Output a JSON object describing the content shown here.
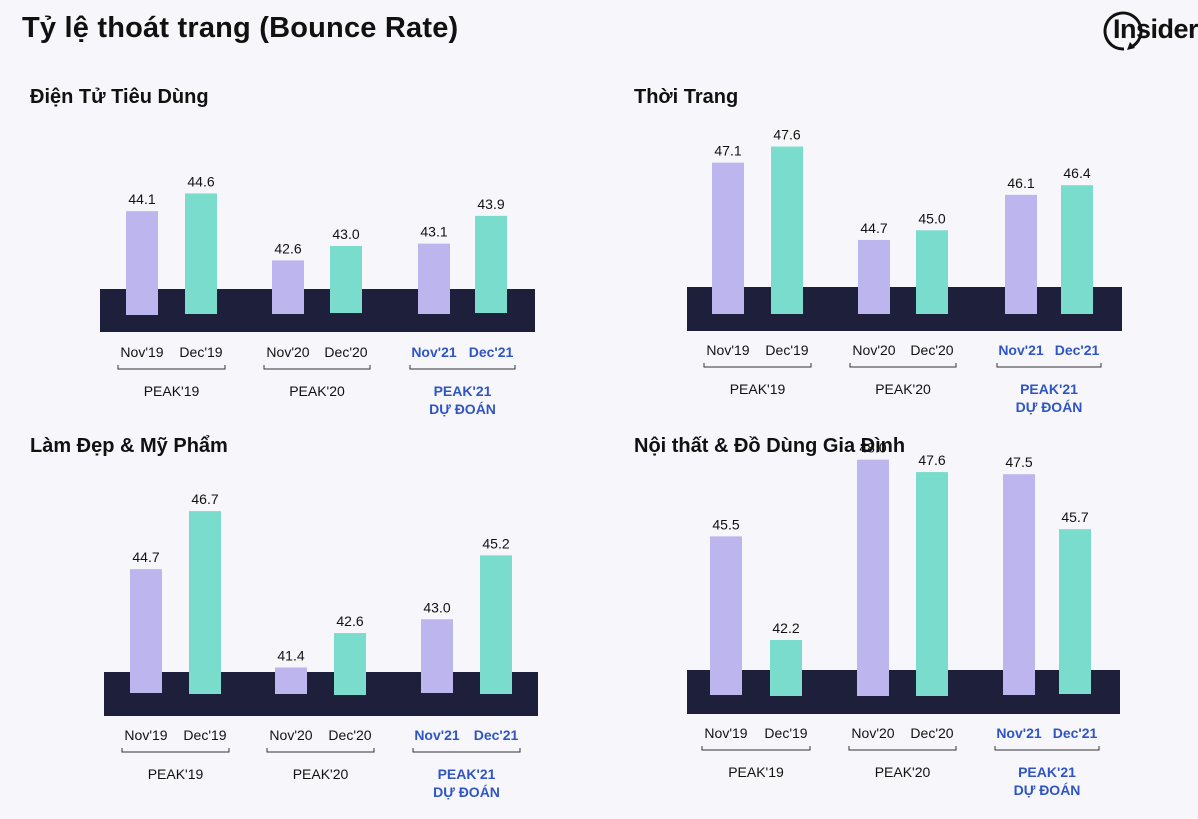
{
  "title": "Tỷ lệ thoát trang (Bounce Rate)",
  "logo": {
    "text": "Insider"
  },
  "colors": {
    "nov": "#bdb5ee",
    "dec": "#79dccd",
    "band": "#1e1f3b",
    "predicted_text": "#2f55c4",
    "text": "#111111"
  },
  "chart_data": [
    {
      "type": "bar",
      "title": "Điện Tử Tiêu Dùng",
      "categories": [
        "Nov'19",
        "Dec'19",
        "Nov'20",
        "Dec'20",
        "Nov'21",
        "Dec'21"
      ],
      "values": [
        44.1,
        44.6,
        42.6,
        43.0,
        43.1,
        43.9
      ],
      "data_labels": [
        "44.1",
        "44.6",
        "42.6",
        "43.0",
        "43.1",
        "43.9"
      ],
      "groups": [
        {
          "lines": [
            "PEAK'19"
          ],
          "predicted": false
        },
        {
          "lines": [
            "PEAK'20"
          ],
          "predicted": false
        },
        {
          "lines": [
            "PEAK'21",
            "DỰ ĐOÁN"
          ],
          "predicted": true
        }
      ]
    },
    {
      "type": "bar",
      "title": "Thời Trang",
      "categories": [
        "Nov'19",
        "Dec'19",
        "Nov'20",
        "Dec'20",
        "Nov'21",
        "Dec'21"
      ],
      "values": [
        47.1,
        47.6,
        44.7,
        45.0,
        46.1,
        46.4
      ],
      "data_labels": [
        "47.1",
        "47.6",
        "44.7",
        "45.0",
        "46.1",
        "46.4"
      ],
      "groups": [
        {
          "lines": [
            "PEAK'19"
          ],
          "predicted": false
        },
        {
          "lines": [
            "PEAK'20"
          ],
          "predicted": false
        },
        {
          "lines": [
            "PEAK'21",
            "DỰ ĐOÁN"
          ],
          "predicted": true
        }
      ]
    },
    {
      "type": "bar",
      "title": "Làm Đẹp & Mỹ Phẩm",
      "categories": [
        "Nov'19",
        "Dec'19",
        "Nov'20",
        "Dec'20",
        "Nov'21",
        "Dec'21"
      ],
      "values": [
        44.7,
        46.7,
        41.4,
        42.6,
        43.0,
        45.2
      ],
      "data_labels": [
        "44.7",
        "46.7",
        "41.4",
        "42.6",
        "43.0",
        "45.2"
      ],
      "groups": [
        {
          "lines": [
            "PEAK'19"
          ],
          "predicted": false
        },
        {
          "lines": [
            "PEAK'20"
          ],
          "predicted": false
        },
        {
          "lines": [
            "PEAK'21",
            "DỰ ĐOÁN"
          ],
          "predicted": true
        }
      ]
    },
    {
      "type": "bar",
      "title": "Nội thất & Đồ Dùng Gia Đình",
      "categories": [
        "Nov'19",
        "Dec'19",
        "Nov'20",
        "Dec'20",
        "Nov'21",
        "Dec'21"
      ],
      "values": [
        45.5,
        42.2,
        48.0,
        47.6,
        47.5,
        45.7
      ],
      "data_labels": [
        "45.5",
        "42.2",
        "48.0",
        "47.6",
        "47.5",
        "45.7"
      ],
      "groups": [
        {
          "lines": [
            "PEAK'19"
          ],
          "predicted": false
        },
        {
          "lines": [
            "PEAK'20"
          ],
          "predicted": false
        },
        {
          "lines": [
            "PEAK'21",
            "DỰ ĐOÁN"
          ],
          "predicted": true
        }
      ]
    }
  ]
}
